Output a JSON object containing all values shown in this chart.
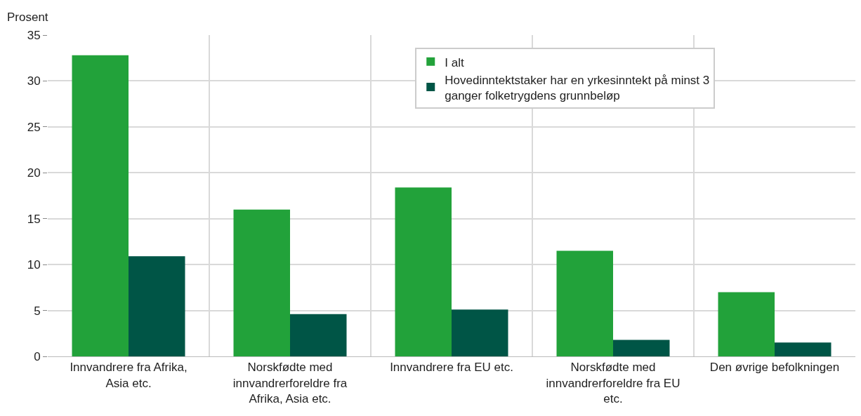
{
  "chart_data": {
    "type": "bar",
    "ylabel": "Prosent",
    "categories": [
      "Innvandrere fra Afrika, Asia etc.",
      "Norskfødte med innvandrerforeldre fra Afrika, Asia etc.",
      "Innvandrere fra EU etc.",
      "Norskfødte med innvandrerforeldre fra EU etc.",
      "Den øvrige befolkningen"
    ],
    "series": [
      {
        "name": "I alt",
        "color": "#22a23a",
        "values": [
          32.8,
          16.0,
          18.4,
          11.5,
          7.0
        ]
      },
      {
        "name": "Hovedinntektstaker har en yrkesinntekt på minst 3 ganger folketrygdens grunnbeløp",
        "color": "#005546",
        "values": [
          10.9,
          4.6,
          5.1,
          1.8,
          1.5
        ]
      }
    ],
    "ylim": [
      0,
      35
    ],
    "yticks": [
      0,
      5,
      10,
      15,
      20,
      25,
      30,
      35
    ],
    "grid": true,
    "legend": "top right"
  }
}
